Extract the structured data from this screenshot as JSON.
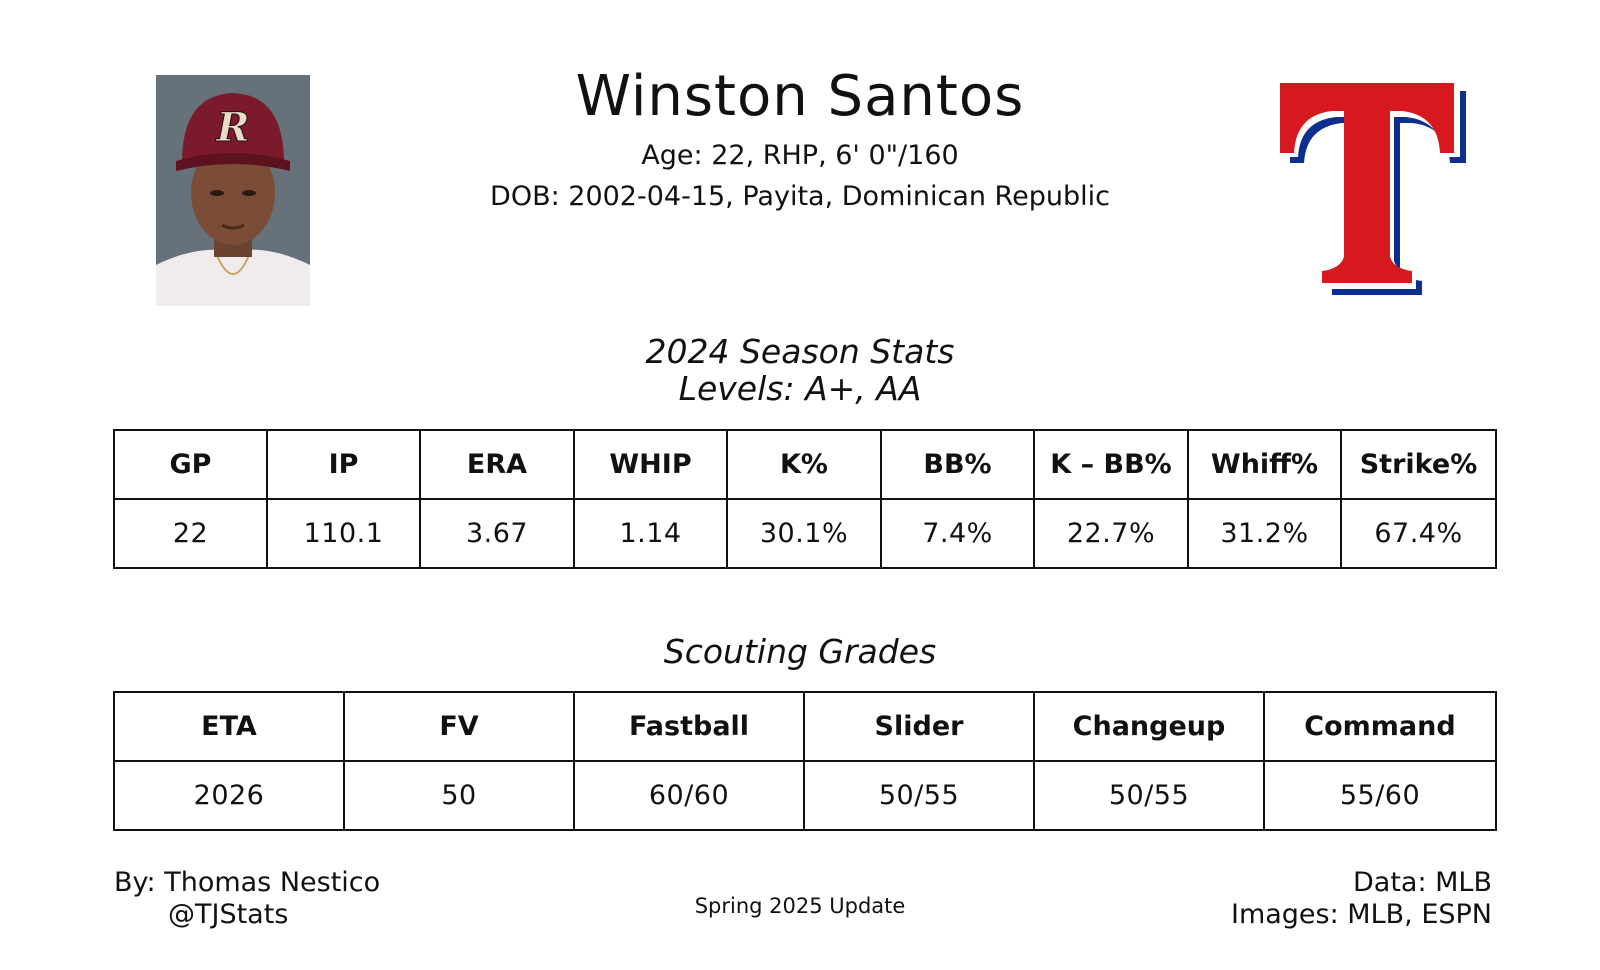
{
  "player": {
    "name": "Winston Santos",
    "bio_line": "Age: 22, RHP, 6' 0\"/160",
    "dob_line": "DOB: 2002-04-15, Payita, Dominican Republic"
  },
  "images": {
    "headshot": "player-headshot",
    "team_logo": "rangers-t-logo",
    "logo_colors": {
      "red": "#d6181f",
      "blue": "#0f2f8f",
      "white": "#ffffff"
    },
    "cap_color": "#7b1a2c"
  },
  "season": {
    "title": "2024 Season Stats",
    "levels": "Levels: A+, AA",
    "headers": [
      "GP",
      "IP",
      "ERA",
      "WHIP",
      "K%",
      "BB%",
      "K – BB%",
      "Whiff%",
      "Strike%"
    ],
    "values": [
      "22",
      "110.1",
      "3.67",
      "1.14",
      "30.1%",
      "7.4%",
      "22.7%",
      "31.2%",
      "67.4%"
    ]
  },
  "grades": {
    "title": "Scouting Grades",
    "headers": [
      "ETA",
      "FV",
      "Fastball",
      "Slider",
      "Changeup",
      "Command"
    ],
    "values": [
      "2026",
      "50",
      "60/60",
      "50/55",
      "50/55",
      "55/60"
    ]
  },
  "footer": {
    "author": "By: Thomas Nestico",
    "handle": "@TJStats",
    "update": "Spring 2025 Update",
    "data_source": "Data: MLB",
    "images_source": "Images: MLB, ESPN"
  }
}
